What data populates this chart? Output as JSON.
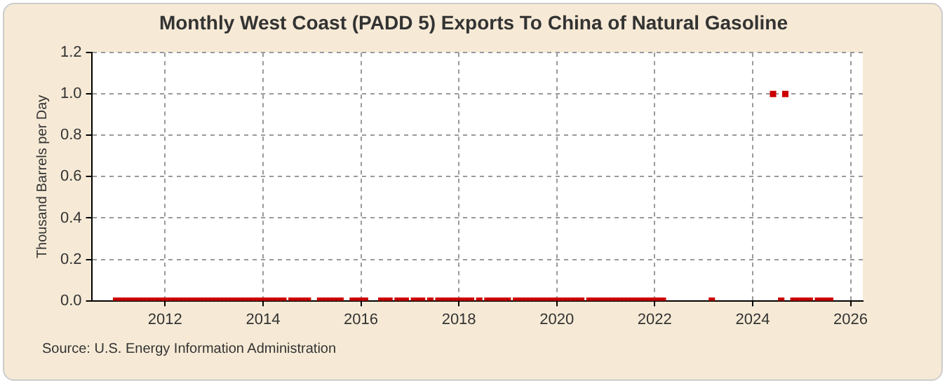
{
  "chart_data": {
    "type": "scatter",
    "title": "Monthly West Coast (PADD 5) Exports To China of Natural Gasoline",
    "ylabel": "Thousand Barrels per Day",
    "x": [
      "2011-01",
      "2011-02",
      "2011-03",
      "2011-04",
      "2011-05",
      "2011-06",
      "2011-07",
      "2011-08",
      "2011-09",
      "2011-10",
      "2011-11",
      "2011-12",
      "2012-01",
      "2012-02",
      "2012-03",
      "2012-04",
      "2012-05",
      "2012-06",
      "2012-07",
      "2012-08",
      "2012-09",
      "2012-10",
      "2012-11",
      "2012-12",
      "2013-01",
      "2013-02",
      "2013-03",
      "2013-04",
      "2013-05",
      "2013-06",
      "2013-07",
      "2013-08",
      "2013-09",
      "2013-10",
      "2013-11",
      "2013-12",
      "2014-01",
      "2014-02",
      "2014-03",
      "2014-04",
      "2014-05",
      "2014-06",
      "2014-08",
      "2014-09",
      "2014-10",
      "2014-11",
      "2014-12",
      "2015-03",
      "2015-04",
      "2015-05",
      "2015-06",
      "2015-07",
      "2015-08",
      "2015-11",
      "2015-12",
      "2016-01",
      "2016-02",
      "2016-06",
      "2016-07",
      "2016-08",
      "2016-10",
      "2016-11",
      "2016-12",
      "2017-02",
      "2017-03",
      "2017-04",
      "2017-06",
      "2017-08",
      "2017-09",
      "2017-10",
      "2017-11",
      "2017-12",
      "2018-01",
      "2018-02",
      "2018-03",
      "2018-04",
      "2018-06",
      "2018-08",
      "2018-09",
      "2018-10",
      "2018-11",
      "2018-12",
      "2019-01",
      "2019-03",
      "2019-04",
      "2019-05",
      "2019-06",
      "2019-07",
      "2019-08",
      "2019-09",
      "2019-10",
      "2019-11",
      "2019-12",
      "2020-01",
      "2020-02",
      "2020-03",
      "2020-04",
      "2020-05",
      "2020-06",
      "2020-07",
      "2020-09",
      "2020-10",
      "2020-11",
      "2020-12",
      "2021-01",
      "2021-02",
      "2021-03",
      "2021-04",
      "2021-05",
      "2021-06",
      "2021-07",
      "2021-08",
      "2021-09",
      "2021-10",
      "2021-11",
      "2021-12",
      "2022-01",
      "2022-02",
      "2022-03",
      "2023-03",
      "2024-06",
      "2024-08",
      "2024-09",
      "2024-11",
      "2024-12",
      "2025-01",
      "2025-02",
      "2025-03",
      "2025-05",
      "2025-06",
      "2025-07",
      "2025-08"
    ],
    "values": [
      0,
      0,
      0,
      0,
      0,
      0,
      0,
      0,
      0,
      0,
      0,
      0,
      0,
      0,
      0,
      0,
      0,
      0,
      0,
      0,
      0,
      0,
      0,
      0,
      0,
      0,
      0,
      0,
      0,
      0,
      0,
      0,
      0,
      0,
      0,
      0,
      0,
      0,
      0,
      0,
      0,
      0,
      0,
      0,
      0,
      0,
      0,
      0,
      0,
      0,
      0,
      0,
      0,
      0,
      0,
      0,
      0,
      0,
      0,
      0,
      0,
      0,
      0,
      0,
      0,
      0,
      0,
      0,
      0,
      0,
      0,
      0,
      0,
      0,
      0,
      0,
      0,
      0,
      0,
      0,
      0,
      0,
      0,
      0,
      0,
      0,
      0,
      0,
      0,
      0,
      0,
      0,
      0,
      0,
      0,
      0,
      0,
      0,
      0,
      0,
      0,
      0,
      0,
      0,
      0,
      0,
      0,
      0,
      0,
      0,
      0,
      0,
      0,
      0,
      0,
      0,
      0,
      0,
      0,
      0,
      1,
      0,
      1,
      0,
      0,
      0,
      0,
      0,
      0,
      0,
      0,
      0
    ],
    "color": "#cc0000",
    "marker": "square",
    "grid": true,
    "legend": false,
    "xlim": [
      "2010-07",
      "2026-04"
    ],
    "xticks": [
      {
        "value": "2012",
        "label": "2012"
      },
      {
        "value": "2014",
        "label": "2014"
      },
      {
        "value": "2016",
        "label": "2016"
      },
      {
        "value": "2018",
        "label": "2018"
      },
      {
        "value": "2020",
        "label": "2020"
      },
      {
        "value": "2022",
        "label": "2022"
      },
      {
        "value": "2024",
        "label": "2024"
      },
      {
        "value": "2026",
        "label": "2026"
      }
    ],
    "ylim": [
      0,
      1.2
    ],
    "yticks": [
      {
        "value": 0,
        "label": "0.0"
      },
      {
        "value": 0.2,
        "label": "0.2"
      },
      {
        "value": 0.4,
        "label": "0.4"
      },
      {
        "value": 0.6,
        "label": "0.6"
      },
      {
        "value": 0.8,
        "label": "0.8"
      },
      {
        "value": 1,
        "label": "1.0"
      },
      {
        "value": 1.2,
        "label": "1.2"
      }
    ],
    "annotations": [
      "Source: U.S. Energy Information Administration"
    ]
  }
}
